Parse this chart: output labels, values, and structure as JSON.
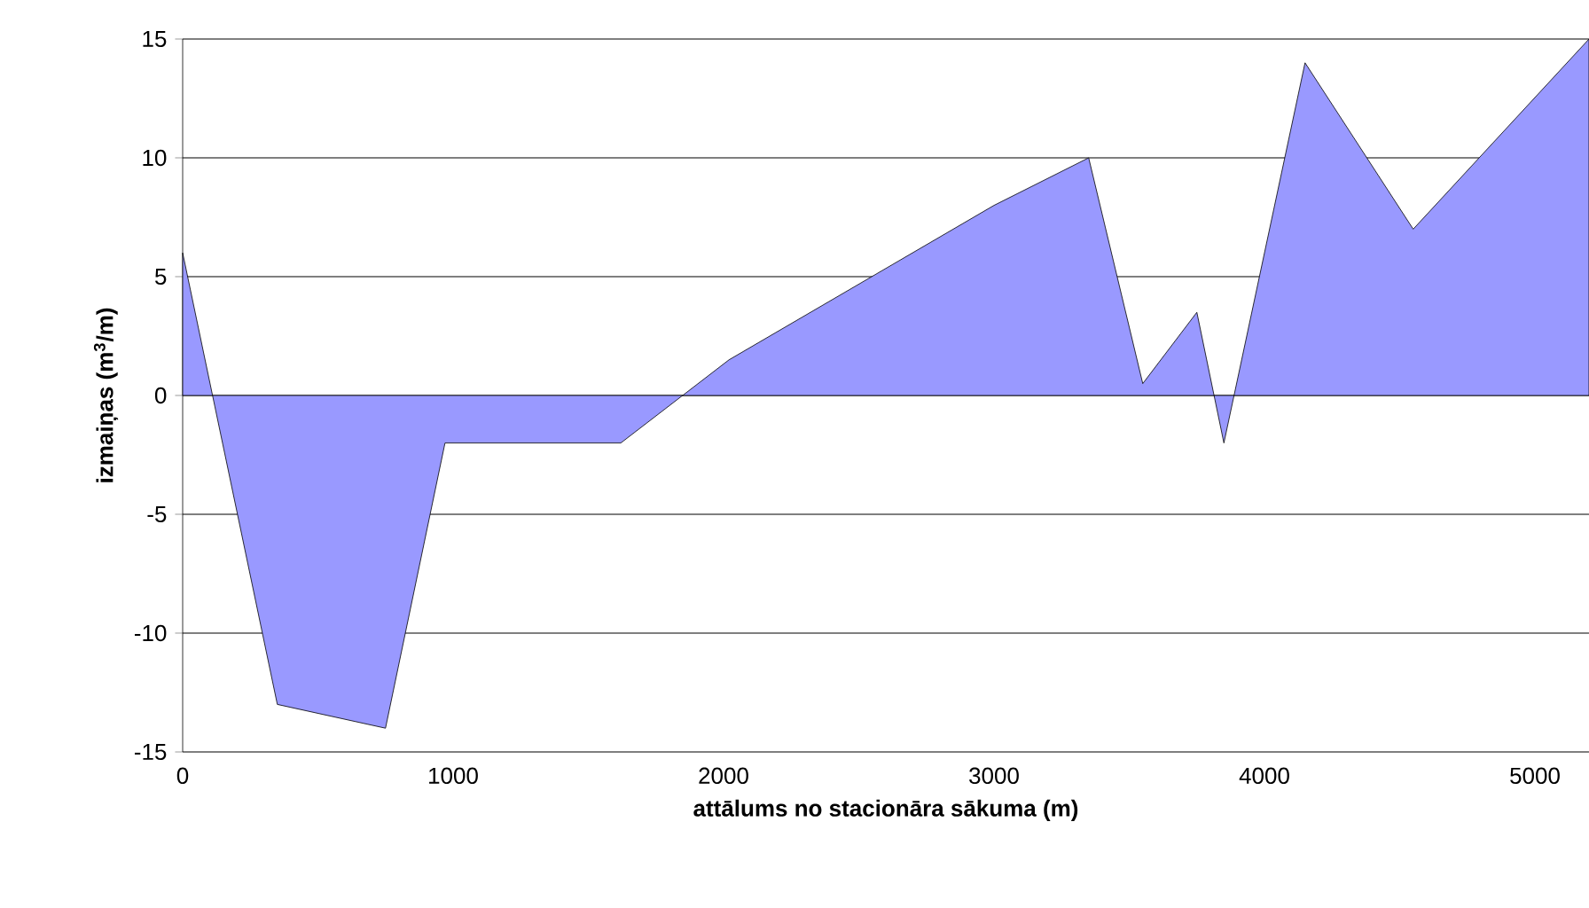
{
  "chart_data": {
    "type": "area",
    "xlabel": "attālums no stacionāra sākuma (m)",
    "ylabel": "izmaiņas (m$^{3}$/m)",
    "x": [
      0,
      350,
      750,
      970,
      1620,
      2020,
      3000,
      3350,
      3550,
      3750,
      3850,
      4150,
      4550,
      5200
    ],
    "series": [
      {
        "color": "#9999ff",
        "values": [
          6,
          -13,
          -14,
          -2,
          -2,
          1.5,
          8,
          10,
          0.5,
          3.5,
          -2,
          14,
          7,
          15
        ]
      }
    ],
    "xlim": [
      0,
      5200
    ],
    "xticks": [
      0,
      1000,
      2000,
      3000,
      4000,
      5000
    ],
    "ylim": [
      -15,
      15
    ],
    "yticks": [
      -15,
      -10,
      -5,
      0,
      5,
      10,
      15
    ],
    "grid": "y"
  }
}
